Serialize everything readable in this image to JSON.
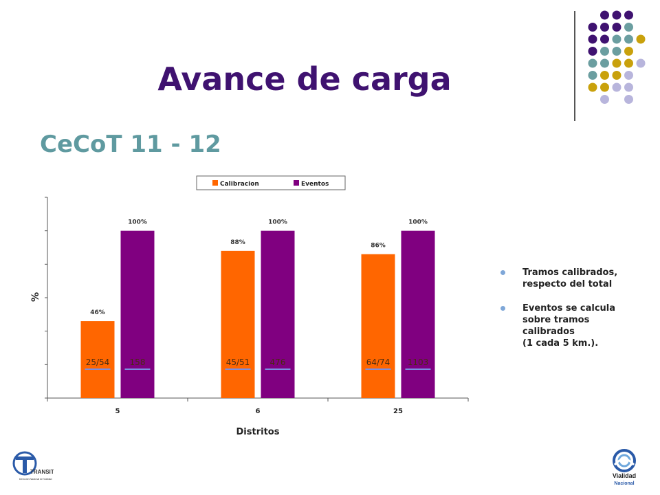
{
  "page": {
    "title": "Avance de carga",
    "subtitle": "CeCoT 11 - 12",
    "notes": [
      "Tramos calibrados,\nrespecto del total",
      "Eventos se calcula\nsobre tramos\ncalibrados\n(1 cada 5 km.)."
    ],
    "logo_left_text": "TRANSITO",
    "logo_left_sub": "Dirección Nacional de Vialidad",
    "logo_right_text": "Vialidad\nNacional"
  },
  "colors": {
    "title": "#3f1270",
    "subtitle": "#5f9aa0",
    "calibracion": "#ff6600",
    "eventos": "#800080",
    "underline": "#7b8ee0",
    "dot_purple": "#3f1270",
    "dot_teal": "#6b9ea0",
    "dot_gold": "#c9a10c",
    "dot_lavender": "#b8b5dc"
  },
  "chart_data": {
    "type": "bar",
    "categories": [
      "5",
      "6",
      "25"
    ],
    "series": [
      {
        "name": "Calibracion",
        "values": [
          46,
          88,
          86
        ],
        "labels": [
          "46%",
          "88%",
          "86%"
        ]
      },
      {
        "name": "Eventos",
        "values": [
          100,
          100,
          100
        ],
        "labels": [
          "100%",
          "100%",
          "100%"
        ]
      }
    ],
    "inner_labels": {
      "calibracion": [
        "25/54",
        "45/51",
        "64/74"
      ],
      "eventos": [
        "158",
        "476",
        "1103"
      ]
    },
    "xlabel": "Distritos",
    "ylabel": "%",
    "ylim": [
      0,
      120
    ],
    "legend_position": "top"
  }
}
